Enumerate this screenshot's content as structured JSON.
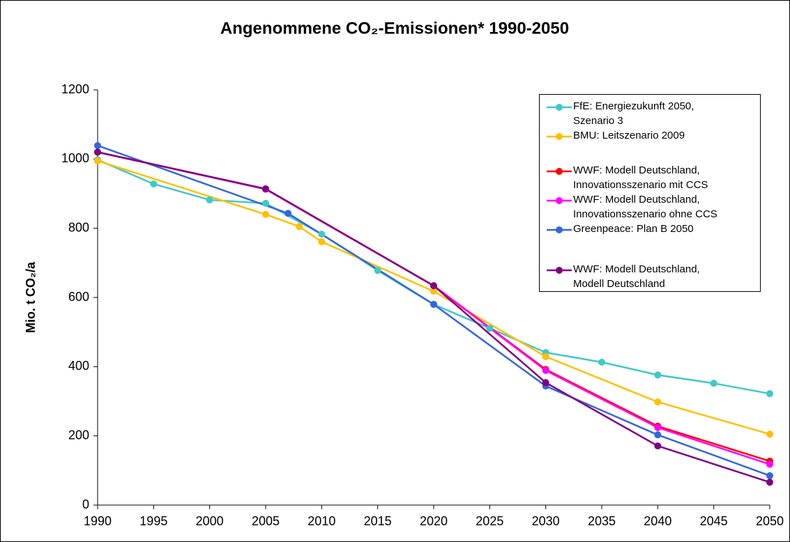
{
  "chart_data": {
    "type": "line",
    "title": "Angenommene CO₂-Emissionen* 1990-2050",
    "y_label": "Mio. t CO₂/a",
    "xlim": [
      1990,
      2050
    ],
    "xticks": [
      1990,
      1995,
      2000,
      2005,
      2010,
      2015,
      2020,
      2025,
      2030,
      2035,
      2040,
      2045,
      2050
    ],
    "ylim": [
      0,
      1200
    ],
    "yticks": [
      0,
      200,
      400,
      600,
      800,
      1000,
      1200
    ],
    "grid": false,
    "legend": "upper right",
    "series": [
      {
        "name": "FfE: Energiezukunft 2050,\nSzenario 3",
        "color": "#40C8C8",
        "x": [
          1990,
          1995,
          2000,
          2005,
          2010,
          2015,
          2020,
          2025,
          2030,
          2035,
          2040,
          2045,
          2050
        ],
        "values": [
          998,
          928,
          882,
          872,
          783,
          678,
          580,
          511,
          441,
          413,
          376,
          352,
          322
        ]
      },
      {
        "name": "BMU: Leitszenario 2009",
        "color": "#FFC000",
        "x": [
          1990,
          2005,
          2008,
          2010,
          2020,
          2030,
          2040,
          2050
        ],
        "values": [
          995,
          840,
          805,
          761,
          618,
          429,
          298,
          205
        ]
      },
      {
        "name": "WWF: Modell Deutschland,\nInnovationsszenario mit CCS",
        "color": "#FF0000",
        "x": [
          1990,
          2005,
          2020,
          2030,
          2040,
          2050
        ],
        "values": [
          1020,
          913,
          634,
          392,
          228,
          127
        ]
      },
      {
        "name": "WWF: Modell Deutschland,\nInnovationsszenario ohne CCS",
        "color": "#FF00FF",
        "x": [
          1990,
          2005,
          2020,
          2030,
          2040,
          2050
        ],
        "values": [
          1020,
          913,
          634,
          389,
          224,
          118
        ]
      },
      {
        "name": "Greenpeace: Plan B 2050",
        "color": "#3366DD",
        "x": [
          1990,
          2007,
          2020,
          2030,
          2040,
          2050
        ],
        "values": [
          1039,
          843,
          580,
          344,
          203,
          85
        ]
      },
      {
        "name": "WWF: Modell Deutschland,\nModell Deutschland",
        "color": "#800080",
        "x": [
          1990,
          2005,
          2020,
          2030,
          2040,
          2050
        ],
        "values": [
          1020,
          914,
          634,
          354,
          171,
          66
        ]
      }
    ]
  }
}
